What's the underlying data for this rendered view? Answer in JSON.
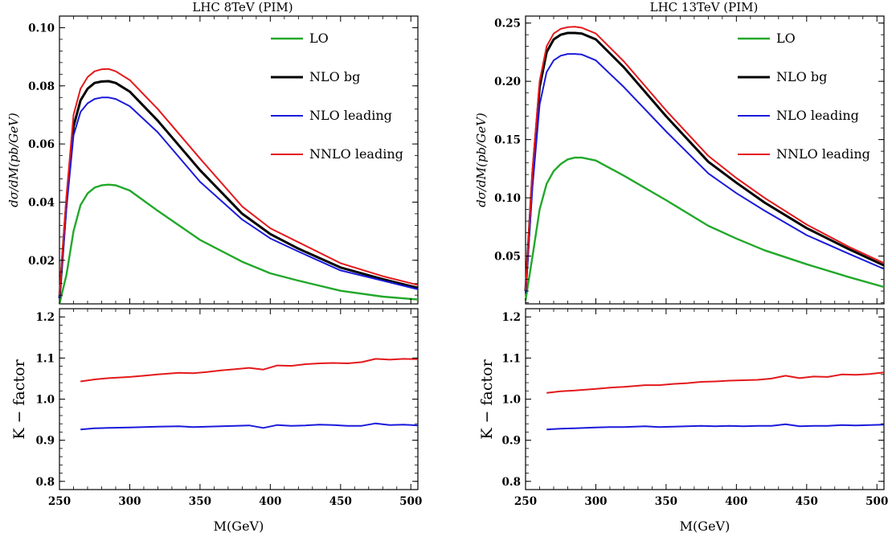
{
  "colors": {
    "LO": "#22a82a",
    "NLO bg": "#000000",
    "NLO leading": "#1a1adb",
    "NNLO leading": "#e3191c"
  },
  "panels": [
    {
      "title": "LHC 8TeV (PIM)",
      "legend": [
        "LO",
        "NLO bg",
        "NLO leading",
        "NNLO leading"
      ],
      "top_ylabel": "dσ/dM(pb/GeV)",
      "bottom_ylabel": "K − factor",
      "xlabel": "M(GeV)",
      "x_ticks": [
        "250",
        "300",
        "350",
        "400",
        "450",
        "500"
      ],
      "top_y_ticks": [
        "0.02",
        "0.04",
        "0.06",
        "0.08",
        "0.10"
      ],
      "bottom_y_ticks": [
        "0.8",
        "0.9",
        "1.0",
        "1.1",
        "1.2"
      ]
    },
    {
      "title": "LHC 13TeV (PIM)",
      "legend": [
        "LO",
        "NLO bg",
        "NLO leading",
        "NNLO leading"
      ],
      "top_ylabel": "dσ/dM(pb/GeV)",
      "bottom_ylabel": "K − factor",
      "xlabel": "M(GeV)",
      "x_ticks": [
        "250",
        "300",
        "350",
        "400",
        "450",
        "500"
      ],
      "top_y_ticks": [
        "0.05",
        "0.10",
        "0.15",
        "0.20",
        "0.25"
      ],
      "bottom_y_ticks": [
        "0.8",
        "0.9",
        "1.0",
        "1.1",
        "1.2"
      ]
    }
  ],
  "chart_data": [
    {
      "type": "line",
      "title": "LHC 8TeV (PIM)",
      "xlabel": "M(GeV)",
      "ylabel": "dσ/dM(pb/GeV)",
      "xlim": [
        250,
        505
      ],
      "ylim": [
        0.005,
        0.104
      ],
      "legend_position": "top-right",
      "x": [
        250,
        255,
        260,
        265,
        270,
        275,
        280,
        285,
        290,
        300,
        320,
        350,
        380,
        400,
        420,
        450,
        480,
        505
      ],
      "series": [
        {
          "name": "LO",
          "values": [
            0.005,
            0.015,
            0.03,
            0.039,
            0.043,
            0.045,
            0.0458,
            0.046,
            0.0458,
            0.044,
            0.037,
            0.027,
            0.0195,
            0.0155,
            0.013,
            0.0095,
            0.0075,
            0.0065
          ]
        },
        {
          "name": "NLO bg",
          "values": [
            0.007,
            0.04,
            0.066,
            0.075,
            0.079,
            0.081,
            0.0815,
            0.0816,
            0.081,
            0.078,
            0.068,
            0.051,
            0.036,
            0.029,
            0.024,
            0.0175,
            0.0135,
            0.0105
          ]
        },
        {
          "name": "NLO leading",
          "values": [
            0.007,
            0.038,
            0.063,
            0.071,
            0.074,
            0.0755,
            0.076,
            0.076,
            0.0755,
            0.073,
            0.064,
            0.047,
            0.034,
            0.0275,
            0.023,
            0.0165,
            0.013,
            0.01
          ]
        },
        {
          "name": "NNLO leading",
          "values": [
            0.008,
            0.042,
            0.07,
            0.079,
            0.083,
            0.085,
            0.0857,
            0.0858,
            0.085,
            0.082,
            0.072,
            0.055,
            0.0385,
            0.031,
            0.0262,
            0.019,
            0.0145,
            0.0115
          ]
        }
      ],
      "k_factor": {
        "ylabel": "K − factor",
        "ylim": [
          0.78,
          1.22
        ],
        "x": [
          265,
          275,
          285,
          300,
          310,
          320,
          335,
          345,
          355,
          365,
          375,
          385,
          395,
          405,
          415,
          425,
          435,
          445,
          455,
          465,
          475,
          485,
          495,
          505
        ],
        "series": [
          {
            "name": "NLO leading",
            "values": [
              0.926,
              0.929,
              0.93,
              0.931,
              0.932,
              0.933,
              0.934,
              0.932,
              0.933,
              0.934,
              0.935,
              0.936,
              0.93,
              0.937,
              0.935,
              0.936,
              0.938,
              0.937,
              0.935,
              0.935,
              0.941,
              0.937,
              0.938,
              0.936
            ]
          },
          {
            "name": "NNLO leading",
            "values": [
              1.043,
              1.048,
              1.051,
              1.054,
              1.057,
              1.06,
              1.064,
              1.063,
              1.066,
              1.07,
              1.073,
              1.076,
              1.072,
              1.082,
              1.081,
              1.085,
              1.087,
              1.088,
              1.087,
              1.09,
              1.098,
              1.096,
              1.098,
              1.097
            ]
          }
        ]
      }
    },
    {
      "type": "line",
      "title": "LHC 13TeV (PIM)",
      "xlabel": "M(GeV)",
      "ylabel": "dσ/dM(pb/GeV)",
      "xlim": [
        250,
        505
      ],
      "ylim": [
        0.009,
        0.256
      ],
      "legend_position": "top-right",
      "x": [
        250,
        255,
        260,
        265,
        270,
        275,
        280,
        285,
        290,
        300,
        320,
        350,
        380,
        400,
        420,
        450,
        480,
        505
      ],
      "series": [
        {
          "name": "LO",
          "values": [
            0.012,
            0.05,
            0.09,
            0.112,
            0.123,
            0.129,
            0.133,
            0.1345,
            0.1345,
            0.132,
            0.119,
            0.098,
            0.076,
            0.065,
            0.055,
            0.043,
            0.032,
            0.0235
          ]
        },
        {
          "name": "NLO bg",
          "values": [
            0.02,
            0.12,
            0.195,
            0.225,
            0.236,
            0.24,
            0.2415,
            0.2415,
            0.241,
            0.236,
            0.212,
            0.17,
            0.131,
            0.113,
            0.096,
            0.074,
            0.056,
            0.042
          ]
        },
        {
          "name": "NLO leading",
          "values": [
            0.018,
            0.11,
            0.18,
            0.208,
            0.218,
            0.222,
            0.2235,
            0.2235,
            0.223,
            0.218,
            0.195,
            0.157,
            0.121,
            0.104,
            0.089,
            0.068,
            0.052,
            0.039
          ]
        },
        {
          "name": "NNLO leading",
          "values": [
            0.021,
            0.125,
            0.2,
            0.23,
            0.241,
            0.245,
            0.2465,
            0.2468,
            0.246,
            0.241,
            0.217,
            0.175,
            0.136,
            0.117,
            0.1,
            0.077,
            0.058,
            0.044
          ]
        }
      ],
      "k_factor": {
        "ylabel": "K − factor",
        "ylim": [
          0.78,
          1.22
        ],
        "x": [
          265,
          275,
          285,
          300,
          310,
          320,
          335,
          345,
          355,
          365,
          375,
          385,
          395,
          405,
          415,
          425,
          435,
          445,
          455,
          465,
          475,
          485,
          495,
          505
        ],
        "series": [
          {
            "name": "NLO leading",
            "values": [
              0.926,
              0.928,
              0.929,
              0.931,
              0.932,
              0.932,
              0.934,
              0.932,
              0.933,
              0.934,
              0.935,
              0.934,
              0.935,
              0.934,
              0.935,
              0.935,
              0.939,
              0.934,
              0.935,
              0.935,
              0.937,
              0.936,
              0.937,
              0.938
            ]
          },
          {
            "name": "NNLO leading",
            "values": [
              1.015,
              1.019,
              1.021,
              1.025,
              1.028,
              1.03,
              1.034,
              1.034,
              1.037,
              1.039,
              1.042,
              1.043,
              1.045,
              1.046,
              1.047,
              1.05,
              1.057,
              1.051,
              1.055,
              1.054,
              1.06,
              1.059,
              1.061,
              1.065
            ]
          }
        ]
      }
    }
  ]
}
